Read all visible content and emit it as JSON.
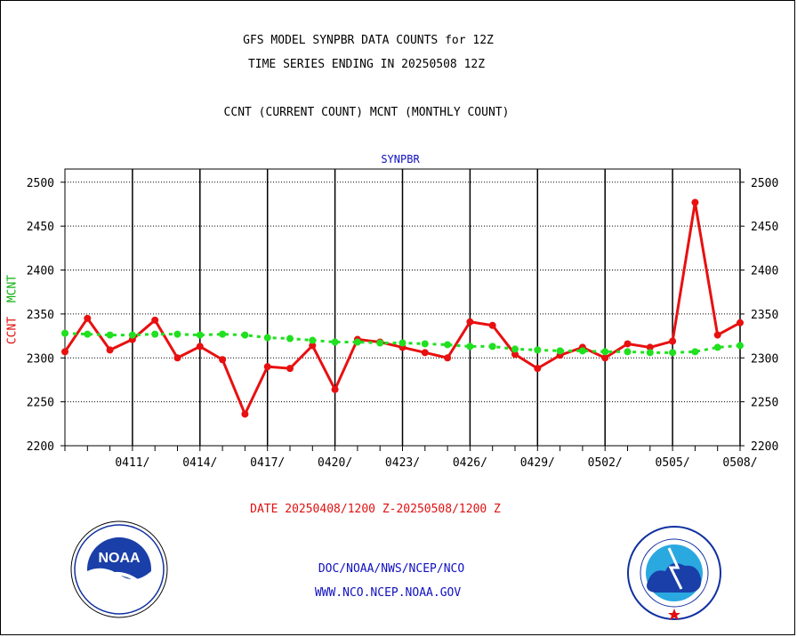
{
  "header": {
    "title_line1": "GFS MODEL SYNPBR DATA COUNTS for 12Z",
    "title_line2": "TIME SERIES ENDING IN 20250508 12Z",
    "title_line3": "CCNT (CURRENT COUNT) MCNT (MONTHLY COUNT)",
    "plot_label": "SYNPBR"
  },
  "footer": {
    "date_range": "DATE 20250408/1200 Z-20250508/1200 Z",
    "org": "DOC/NOAA/NWS/NCEP/NCO",
    "url": "WWW.NCO.NCEP.NOAA.GOV"
  },
  "logos": {
    "left": {
      "text": "NOAA",
      "ring_text": "NATIONAL OCEANIC AND ATMOSPHERIC ADMINISTRATION · U.S. DEPARTMENT OF COMMERCE"
    },
    "right": {
      "ring_text": "NATIONAL WEATHER SERVICE"
    }
  },
  "colors": {
    "ccnt": "#e81010",
    "mcnt": "#20e020",
    "axis_text": "#000000",
    "title_blue": "#1010c0"
  },
  "chart_data": {
    "type": "line",
    "ylabel_parts": [
      "CCNT",
      "MCNT"
    ],
    "ylim": [
      2200,
      2515
    ],
    "yticks": [
      2200,
      2250,
      2300,
      2350,
      2400,
      2450,
      2500
    ],
    "x_index_range": [
      0,
      30
    ],
    "xtick_labels": [
      "0411/",
      "0414/",
      "0417/",
      "0420/",
      "0423/",
      "0426/",
      "0429/",
      "0502/",
      "0505/",
      "0508/"
    ],
    "xtick_positions": [
      3,
      6,
      9,
      12,
      15,
      18,
      21,
      24,
      27,
      30
    ],
    "grid": true,
    "series": [
      {
        "name": "CCNT",
        "color": "#e81010",
        "style": "solid",
        "x": [
          0,
          1,
          2,
          3,
          4,
          5,
          6,
          7,
          8,
          9,
          10,
          11,
          12,
          13,
          14,
          15,
          16,
          17,
          18,
          19,
          20,
          21,
          22,
          23,
          24,
          25,
          26,
          27,
          28,
          29,
          30
        ],
        "values": [
          2307,
          2345,
          2309,
          2321,
          2343,
          2300,
          2313,
          2298,
          2236,
          2290,
          2288,
          2314,
          2264,
          2321,
          2318,
          2312,
          2306,
          2300,
          2341,
          2337,
          2304,
          2288,
          2303,
          2312,
          2300,
          2316,
          2312,
          2319,
          2477,
          2326,
          2340
        ]
      },
      {
        "name": "MCNT",
        "color": "#20e020",
        "style": "dashed",
        "x": [
          0,
          1,
          2,
          3,
          4,
          5,
          6,
          7,
          8,
          9,
          10,
          11,
          12,
          13,
          14,
          15,
          16,
          17,
          18,
          19,
          20,
          21,
          22,
          23,
          24,
          25,
          26,
          27,
          28,
          29,
          30
        ],
        "values": [
          2328,
          2327,
          2326,
          2326,
          2327,
          2327,
          2326,
          2327,
          2326,
          2323,
          2322,
          2320,
          2318,
          2318,
          2317,
          2317,
          2316,
          2315,
          2313,
          2313,
          2310,
          2309,
          2308,
          2308,
          2307,
          2307,
          2306,
          2306,
          2307,
          2312,
          2314
        ]
      }
    ]
  }
}
